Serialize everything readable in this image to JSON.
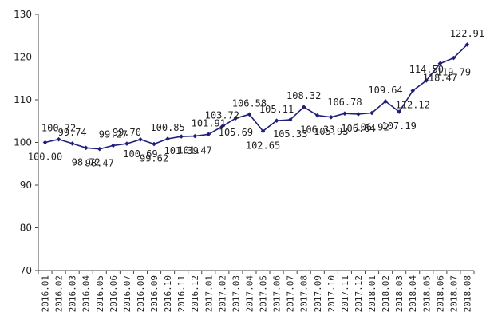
{
  "chart_data": {
    "type": "line",
    "title": "",
    "xlabel": "",
    "ylabel": "",
    "ylim": [
      70,
      130
    ],
    "yticks": [
      "70",
      "80",
      "90",
      "100",
      "110",
      "120",
      "130"
    ],
    "grid": false,
    "legend": "none",
    "x": [
      "2016.01",
      "2016.02",
      "2016.03",
      "2016.04",
      "2016.05",
      "2016.06",
      "2016.07",
      "2016.08",
      "2016.09",
      "2016.10",
      "2016.11",
      "2016.12",
      "2017.01",
      "2017.02",
      "2017.03",
      "2017.04",
      "2017.05",
      "2017.06",
      "2017.07",
      "2017.08",
      "2017.09",
      "2017.10",
      "2017.11",
      "2017.12",
      "2018.01",
      "2018.02",
      "2018.03",
      "2018.04",
      "2018.05",
      "2018.06",
      "2018.07",
      "2018.08"
    ],
    "series": [
      {
        "values": [
          100.0,
          100.72,
          99.74,
          98.72,
          98.47,
          99.27,
          99.7,
          100.69,
          99.62,
          100.85,
          101.39,
          101.47,
          101.91,
          103.72,
          105.69,
          106.58,
          102.65,
          105.11,
          105.33,
          108.32,
          106.33,
          105.93,
          106.78,
          106.64,
          106.92,
          109.64,
          107.19,
          112.12,
          114.5,
          118.47,
          119.79,
          122.91
        ],
        "labels": [
          "100.00",
          "100.72",
          "99.74",
          "98.72",
          "98.47",
          "99.27",
          "99.70",
          "100.69",
          "99.62",
          "100.85",
          "101.39",
          "101.47",
          "101.91",
          "103.72",
          "105.69",
          "106.58",
          "102.65",
          "105.11",
          "105.33",
          "108.32",
          "106.33",
          "105.93",
          "106.78",
          "106.64",
          "106.92",
          "109.64",
          "107.19",
          "112.12",
          "114.50",
          "118.47",
          "119.79",
          "122.91"
        ],
        "color": "#1f1f7a"
      }
    ]
  }
}
